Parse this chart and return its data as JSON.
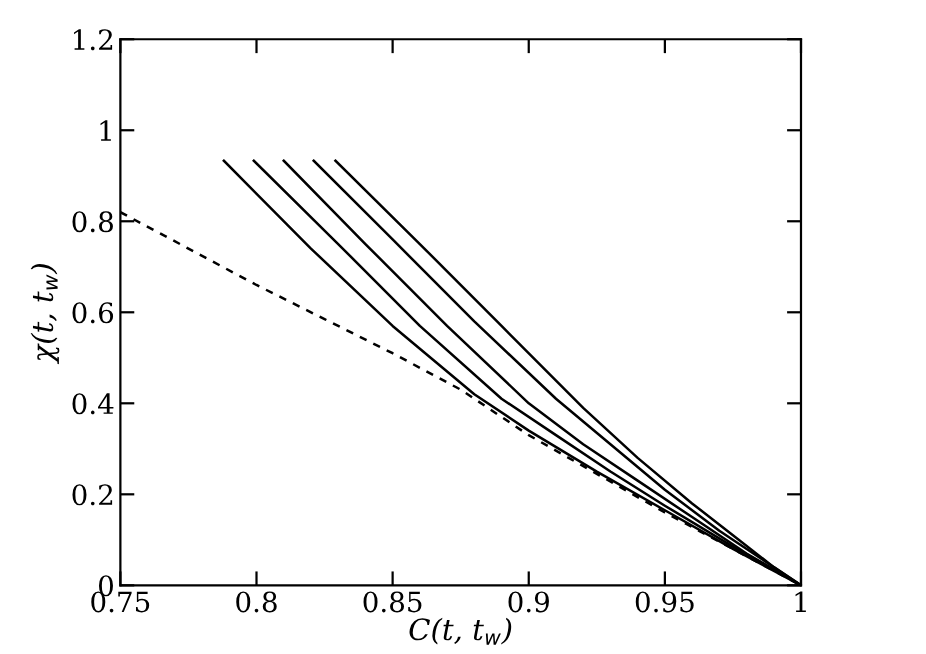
{
  "chart_data": {
    "type": "line",
    "xlabel": "C(t, t$_{w}$)",
    "ylabel": "χ(t, t$_{w}$)",
    "xlim": [
      0.75,
      1
    ],
    "ylim": [
      0,
      1.2
    ],
    "xticks": [
      0.75,
      0.8,
      0.85,
      0.9,
      0.95,
      1
    ],
    "yticks": [
      0,
      0.2,
      0.4,
      0.6,
      0.8,
      1,
      1.2
    ],
    "grid": false,
    "marker": "none",
    "series": [
      {
        "color": "#000000",
        "line_style": "solid",
        "x": [
          0.788,
          0.82,
          0.85,
          0.88,
          0.9,
          0.925,
          0.95,
          0.975,
          1
        ],
        "values": [
          0.933,
          0.74,
          0.57,
          0.42,
          0.34,
          0.25,
          0.165,
          0.08,
          0
        ]
      },
      {
        "color": "#000000",
        "line_style": "solid",
        "x": [
          0.799,
          0.83,
          0.86,
          0.89,
          0.91,
          0.93,
          0.95,
          0.975,
          1
        ],
        "values": [
          0.933,
          0.75,
          0.57,
          0.41,
          0.33,
          0.25,
          0.175,
          0.085,
          0
        ]
      },
      {
        "color": "#000000",
        "line_style": "solid",
        "x": [
          0.81,
          0.84,
          0.87,
          0.9,
          0.92,
          0.94,
          0.96,
          0.98,
          1
        ],
        "values": [
          0.933,
          0.75,
          0.57,
          0.4,
          0.31,
          0.23,
          0.15,
          0.07,
          0
        ]
      },
      {
        "color": "#000000",
        "line_style": "solid",
        "x": [
          0.821,
          0.85,
          0.88,
          0.91,
          0.93,
          0.95,
          0.97,
          0.985,
          1
        ],
        "values": [
          0.933,
          0.76,
          0.58,
          0.41,
          0.31,
          0.21,
          0.12,
          0.06,
          0
        ]
      },
      {
        "color": "#000000",
        "line_style": "solid",
        "x": [
          0.829,
          0.86,
          0.89,
          0.92,
          0.94,
          0.96,
          0.975,
          0.99,
          1
        ],
        "values": [
          0.933,
          0.75,
          0.57,
          0.39,
          0.28,
          0.18,
          0.11,
          0.04,
          0
        ]
      },
      {
        "color": "#000000",
        "line_style": "dashed",
        "x": [
          0.75,
          0.775,
          0.8,
          0.825,
          0.85,
          0.875,
          0.9,
          0.925,
          0.95,
          0.975,
          1
        ],
        "values": [
          0.82,
          0.74,
          0.66,
          0.585,
          0.51,
          0.43,
          0.33,
          0.245,
          0.16,
          0.08,
          0
        ]
      }
    ]
  }
}
